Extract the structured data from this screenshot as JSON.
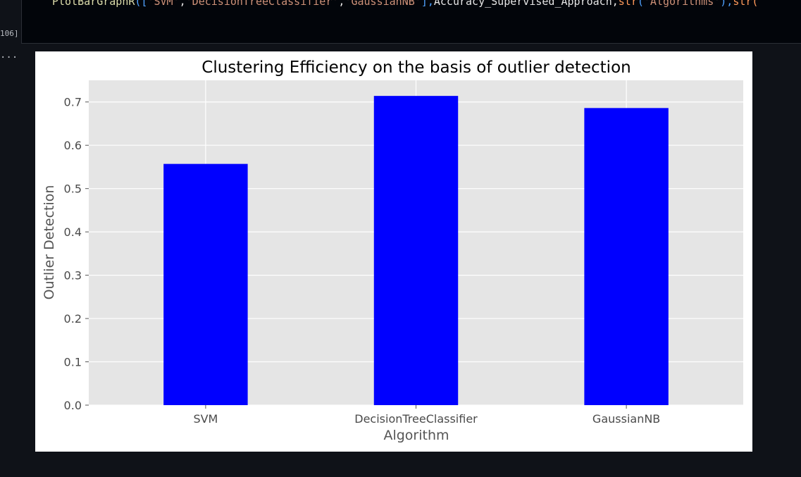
{
  "code_cell": {
    "execution_count": "106]",
    "tokens": [
      {
        "text": "PlotBarGraphR",
        "cls": "tok-fn"
      },
      {
        "text": "([",
        "cls": "tok-punct"
      },
      {
        "text": "'SVM'",
        "cls": "tok-str"
      },
      {
        "text": ",",
        "cls": ""
      },
      {
        "text": "'DecisionTreeClassifier'",
        "cls": "tok-str"
      },
      {
        "text": ",",
        "cls": ""
      },
      {
        "text": "'GaussianNB'",
        "cls": "tok-str"
      },
      {
        "text": "],",
        "cls": "tok-punct"
      },
      {
        "text": "Accuracy_Supervised_Approach,",
        "cls": ""
      },
      {
        "text": "str",
        "cls": "tok-builtin"
      },
      {
        "text": "(",
        "cls": "tok-punct"
      },
      {
        "text": "'Algorithms'",
        "cls": "tok-str"
      },
      {
        "text": "),",
        "cls": "tok-punct"
      },
      {
        "text": "str(",
        "cls": "tok-builtin"
      }
    ]
  },
  "output": {
    "ellipsis": "..."
  },
  "colors": {
    "bar": "#0000ff",
    "plot_bg": "#e5e5e5",
    "grid": "#ffffff"
  },
  "chart_data": {
    "type": "bar",
    "title": "Clustering Efficiency on the basis of outlier detection",
    "xlabel": "Algorithm",
    "ylabel": "Outlier Detection",
    "categories": [
      "SVM",
      "DecisionTreeClassifier",
      "GaussianNB"
    ],
    "values": [
      0.557,
      0.714,
      0.686
    ],
    "ylim": [
      0,
      0.75
    ],
    "yticks": [
      0.0,
      0.1,
      0.2,
      0.3,
      0.4,
      0.5,
      0.6,
      0.7
    ],
    "ytick_labels": [
      "0.0",
      "0.1",
      "0.2",
      "0.3",
      "0.4",
      "0.5",
      "0.6",
      "0.7"
    ],
    "grid": true
  }
}
